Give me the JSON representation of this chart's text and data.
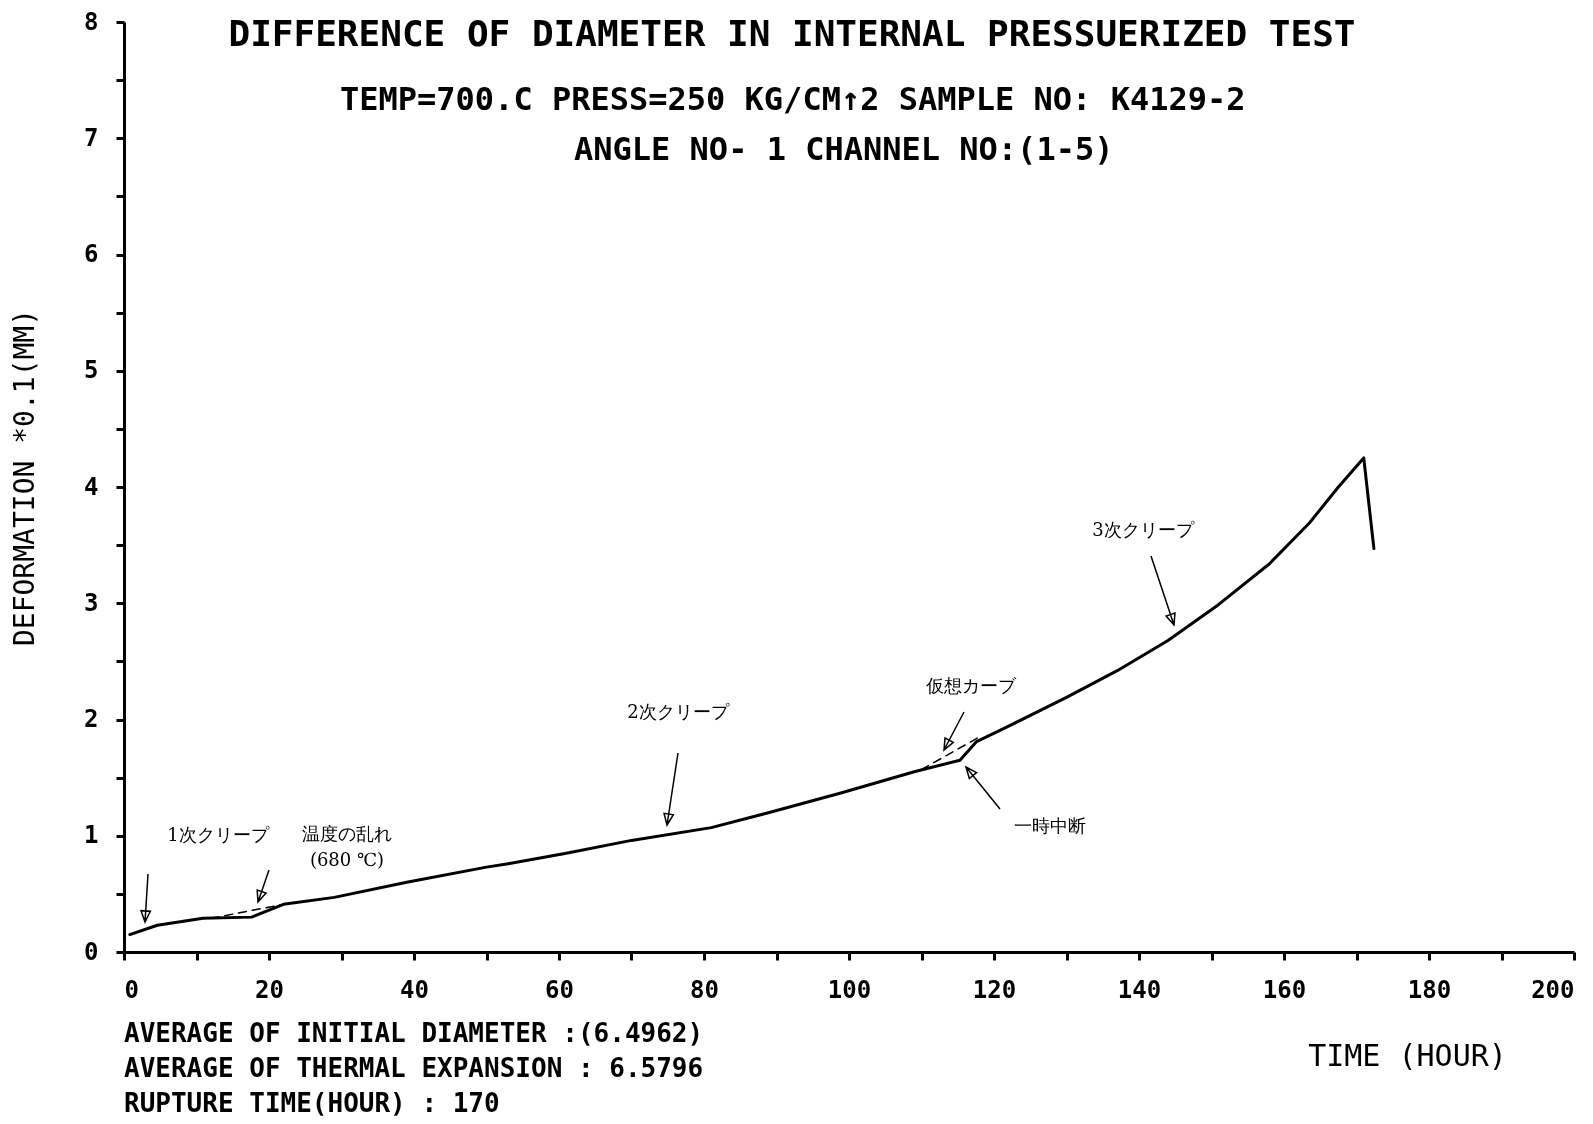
{
  "chart_data": {
    "type": "line",
    "title": "DIFFERENCE OF DIAMETER IN INTERNAL PRESSUERIZED TEST",
    "subtitle": "TEMP=700.C  PRESS=250 KG/CM↑2  SAMPLE NO: K4129-2\nANGLE NO- 1  CHANNEL NO:(1-5)",
    "xlabel": "TIME (HOUR)",
    "ylabel": "DEFORMATION    *0.1(MM)",
    "xlim": [
      0,
      200
    ],
    "ylim": [
      0,
      8
    ],
    "xticks": [
      0,
      {
        "value": 10,
        "label": null
      },
      20,
      {
        "value": 30,
        "label": null
      },
      40,
      {
        "value": 50,
        "label": null
      },
      60,
      {
        "value": 70,
        "label": null
      },
      80,
      {
        "value": 90,
        "label": null
      },
      100,
      {
        "value": 110,
        "label": null
      },
      120,
      {
        "value": 130,
        "label": null
      },
      140,
      {
        "value": 150,
        "label": null
      },
      160,
      {
        "value": 170,
        "label": null
      },
      180,
      {
        "value": 190,
        "label": null
      },
      200
    ],
    "yticks": [
      0,
      {
        "value": 0.5,
        "label": null
      },
      1,
      {
        "value": 1.5,
        "label": null
      },
      2,
      {
        "value": 2.5,
        "label": null
      },
      3,
      {
        "value": 3.5,
        "label": null
      },
      4,
      {
        "value": 4.5,
        "label": null
      },
      5,
      {
        "value": 5.5,
        "label": null
      },
      6,
      {
        "value": 6.5,
        "label": null
      },
      7,
      {
        "value": 7.5,
        "label": null
      },
      8
    ],
    "grid": false,
    "series": [
      {
        "color": "#000000",
        "line_style": "solid",
        "x": [
          0.8,
          4.6,
          10.9,
          17.6,
          22,
          29,
          39,
          50,
          53,
          61,
          70,
          81,
          89,
          99,
          109,
          115.3,
          117.6,
          121.6,
          130,
          137,
          144,
          151,
          158,
          163.5,
          167.5,
          171,
          172.4
        ],
        "values": [
          0.15,
          0.23,
          0.29,
          0.3,
          0.41,
          0.47,
          0.6,
          0.73,
          0.76,
          0.85,
          0.96,
          1.07,
          1.2,
          1.37,
          1.55,
          1.65,
          1.81,
          1.93,
          2.19,
          2.42,
          2.68,
          2.99,
          3.34,
          3.69,
          4.0,
          4.25,
          3.47
        ]
      },
      {
        "color": "#000000",
        "line_style": "dashed",
        "x": [
          12,
          22,
          66,
          110,
          118
        ],
        "values": [
          0.29,
          0.41,
          null,
          1.57,
          1.85
        ]
      }
    ],
    "annotations": [
      "1次クリープ",
      "温度の乱れ\n(680 ℃)",
      "2次クリープ",
      "仮想カーブ",
      "一時中断",
      "3次クリープ",
      "AVERAGE OF INITIAL DIAMETER :(6.4962)",
      "AVERAGE OF THERMAL EXPANSION : 6.5796",
      "RUPTURE TIME(HOUR) : 170"
    ]
  }
}
